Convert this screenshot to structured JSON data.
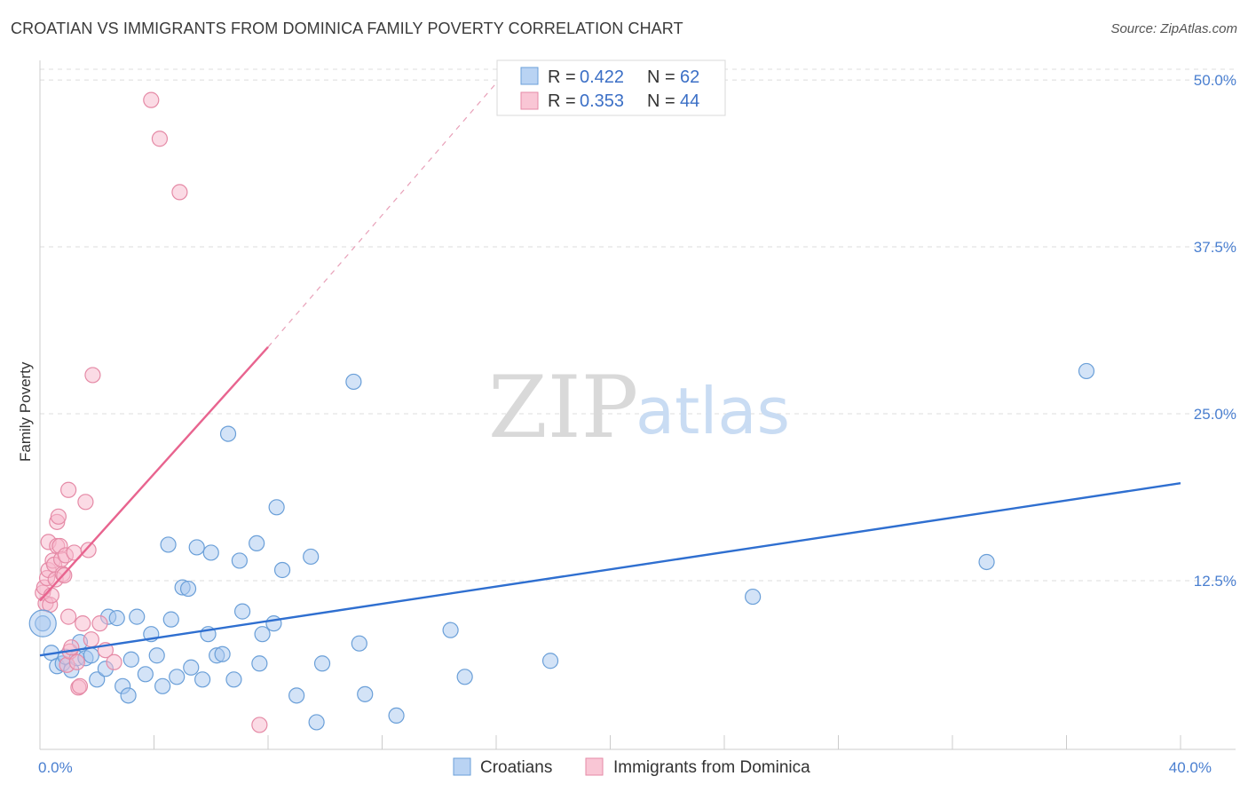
{
  "header": {
    "title": "CROATIAN VS IMMIGRANTS FROM DOMINICA FAMILY POVERTY CORRELATION CHART",
    "source": "Source: ZipAtlas.com"
  },
  "watermark": {
    "zip": "ZIP",
    "atlas": "atlas"
  },
  "legend": {
    "rows": [
      {
        "r_label": "R =",
        "r_value": "0.422",
        "n_label": "N =",
        "n_value": "62",
        "color": "#a8c8f0",
        "stroke": "#6a9fd8"
      },
      {
        "r_label": "R =",
        "r_value": "0.353",
        "n_label": "N =",
        "n_value": "44",
        "color": "#f7b8cb",
        "stroke": "#e58aa6"
      }
    ]
  },
  "bottom_legend": {
    "items": [
      "Croatians",
      "Immigrants from Dominica"
    ]
  },
  "chart_data": {
    "type": "scatter",
    "title": "CROATIAN VS IMMIGRANTS FROM DOMINICA FAMILY POVERTY CORRELATION CHART",
    "xlabel": "",
    "ylabel": "Family Poverty",
    "xlim": [
      0,
      40
    ],
    "ylim": [
      0,
      52
    ],
    "x_tick_labels": [
      {
        "value": 0,
        "label": "0.0%"
      },
      {
        "value": 40,
        "label": "40.0%"
      }
    ],
    "y_tick_labels": [
      {
        "value": 12.5,
        "label": "12.5%"
      },
      {
        "value": 25,
        "label": "25.0%"
      },
      {
        "value": 37.5,
        "label": "37.5%"
      },
      {
        "value": 50,
        "label": "50.0%"
      }
    ],
    "series": [
      {
        "name": "Croatians",
        "color": "#a8c8f0",
        "stroke": "#6a9fd8",
        "trend": {
          "x": [
            0,
            40
          ],
          "y": [
            6.9,
            19.8
          ],
          "color": "#2f6fd0"
        },
        "points": [
          [
            0.1,
            9.3
          ],
          [
            0.4,
            7.1
          ],
          [
            0.6,
            6.1
          ],
          [
            0.8,
            6.3
          ],
          [
            0.9,
            6.8
          ],
          [
            1.1,
            5.8
          ],
          [
            1.3,
            6.7
          ],
          [
            1.4,
            7.9
          ],
          [
            1.6,
            6.7
          ],
          [
            1.8,
            6.9
          ],
          [
            2.0,
            5.1
          ],
          [
            2.3,
            5.9
          ],
          [
            2.4,
            9.8
          ],
          [
            2.7,
            9.7
          ],
          [
            2.9,
            4.6
          ],
          [
            3.1,
            3.9
          ],
          [
            3.2,
            6.6
          ],
          [
            3.4,
            9.8
          ],
          [
            3.7,
            5.5
          ],
          [
            3.9,
            8.5
          ],
          [
            4.1,
            6.9
          ],
          [
            4.3,
            4.6
          ],
          [
            4.5,
            15.2
          ],
          [
            4.6,
            9.6
          ],
          [
            4.8,
            5.3
          ],
          [
            5.0,
            12.0
          ],
          [
            5.2,
            11.9
          ],
          [
            5.3,
            6.0
          ],
          [
            5.5,
            15.0
          ],
          [
            5.7,
            5.1
          ],
          [
            5.9,
            8.5
          ],
          [
            6.0,
            14.6
          ],
          [
            6.2,
            6.9
          ],
          [
            6.4,
            7.0
          ],
          [
            6.6,
            23.5
          ],
          [
            6.8,
            5.1
          ],
          [
            7.0,
            14.0
          ],
          [
            7.1,
            10.2
          ],
          [
            7.6,
            15.3
          ],
          [
            7.7,
            6.3
          ],
          [
            7.8,
            8.5
          ],
          [
            8.2,
            9.3
          ],
          [
            8.3,
            18.0
          ],
          [
            8.5,
            13.3
          ],
          [
            9.0,
            3.9
          ],
          [
            9.5,
            14.3
          ],
          [
            9.7,
            1.9
          ],
          [
            9.9,
            6.3
          ],
          [
            11.0,
            27.4
          ],
          [
            11.2,
            7.8
          ],
          [
            11.4,
            4.0
          ],
          [
            12.5,
            2.4
          ],
          [
            14.4,
            8.8
          ],
          [
            14.9,
            5.3
          ],
          [
            17.9,
            6.5
          ],
          [
            25.0,
            11.3
          ],
          [
            33.2,
            13.9
          ],
          [
            36.7,
            28.2
          ]
        ]
      },
      {
        "name": "Immigrants from Dominica",
        "color": "#f7b8cb",
        "stroke": "#e58aa6",
        "trend": {
          "x": [
            0,
            8.0
          ],
          "y": [
            11.0,
            30.0
          ],
          "color": "#e8648f"
        },
        "trend_dashed": {
          "x": [
            8.0,
            16.3
          ],
          "y": [
            30.0,
            50.5
          ],
          "color": "#e8a0b8"
        },
        "points": [
          [
            0.1,
            11.6
          ],
          [
            0.15,
            12.0
          ],
          [
            0.2,
            10.8
          ],
          [
            0.25,
            12.7
          ],
          [
            0.3,
            13.3
          ],
          [
            0.3,
            15.4
          ],
          [
            0.35,
            10.7
          ],
          [
            0.4,
            11.4
          ],
          [
            0.45,
            14.0
          ],
          [
            0.5,
            13.7
          ],
          [
            0.55,
            12.6
          ],
          [
            0.6,
            15.1
          ],
          [
            0.6,
            16.9
          ],
          [
            0.65,
            17.3
          ],
          [
            0.7,
            15.1
          ],
          [
            0.75,
            14.1
          ],
          [
            0.8,
            13.0
          ],
          [
            0.85,
            12.9
          ],
          [
            0.9,
            14.4
          ],
          [
            0.95,
            6.2
          ],
          [
            1.0,
            19.3
          ],
          [
            1.0,
            9.8
          ],
          [
            1.05,
            7.2
          ],
          [
            1.1,
            7.5
          ],
          [
            1.2,
            14.6
          ],
          [
            1.3,
            6.4
          ],
          [
            1.35,
            4.5
          ],
          [
            1.4,
            4.6
          ],
          [
            1.5,
            9.3
          ],
          [
            1.6,
            18.4
          ],
          [
            1.7,
            14.8
          ],
          [
            1.8,
            8.1
          ],
          [
            1.85,
            27.9
          ],
          [
            2.1,
            9.3
          ],
          [
            2.3,
            7.3
          ],
          [
            2.6,
            6.4
          ],
          [
            3.9,
            48.5
          ],
          [
            4.2,
            45.6
          ],
          [
            4.9,
            41.6
          ],
          [
            7.7,
            1.7
          ]
        ]
      }
    ]
  }
}
